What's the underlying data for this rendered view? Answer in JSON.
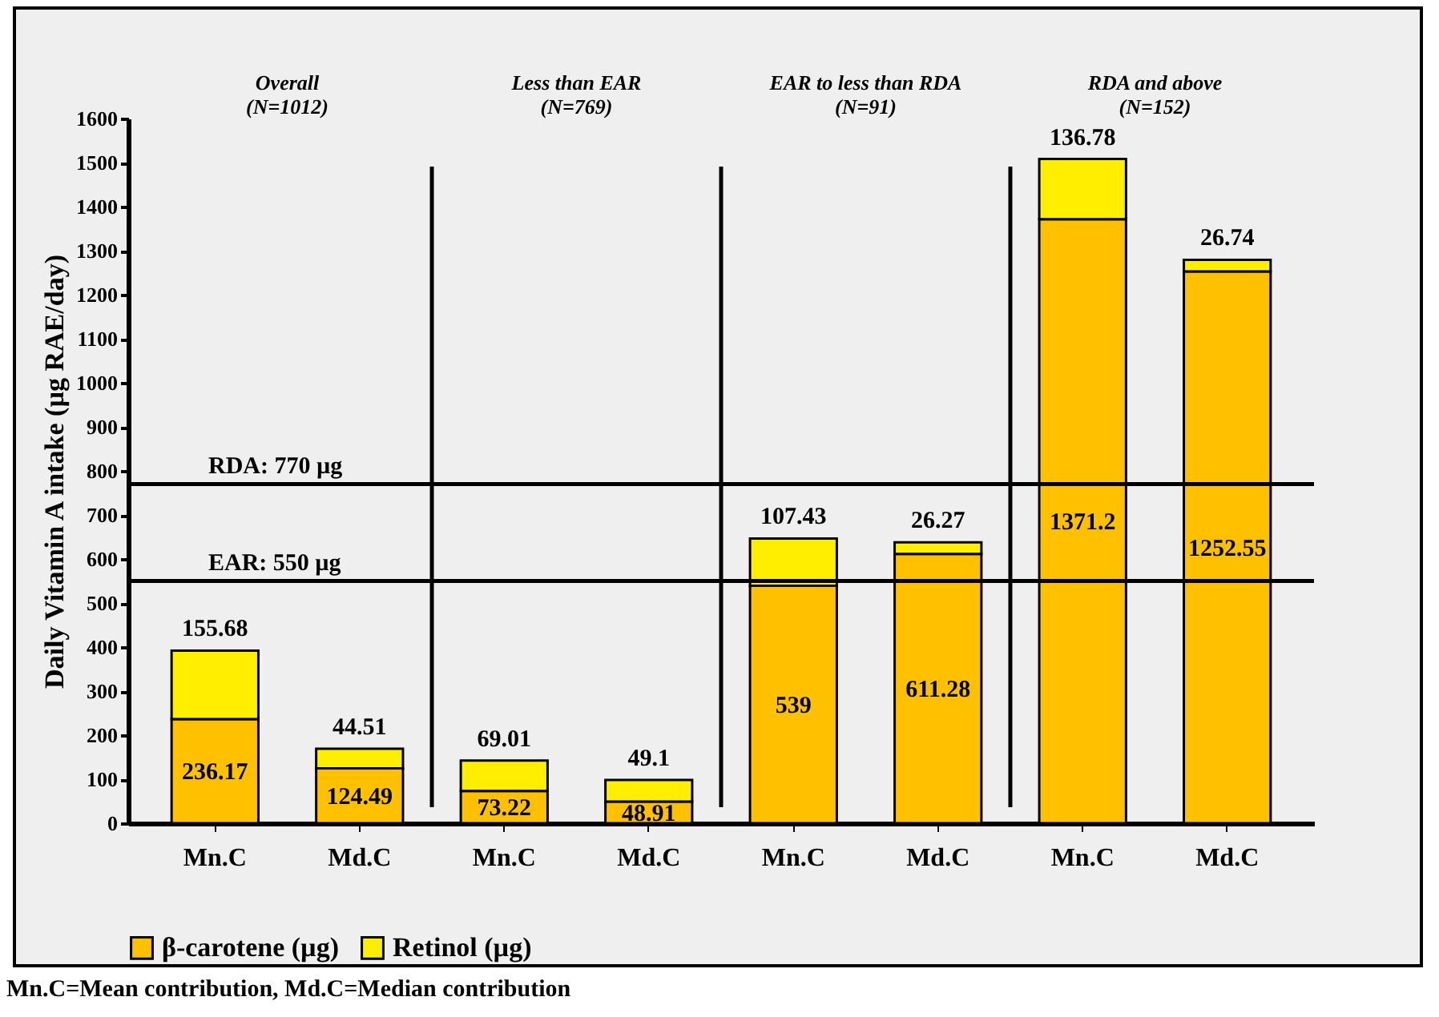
{
  "chart_data": {
    "type": "bar",
    "stacked": true,
    "ylabel": "Daily Vitamin A intake (µg RAE/day)",
    "categories": [
      "Mn.C",
      "Md.C",
      "Mn.C",
      "Md.C",
      "Mn.C",
      "Md.C",
      "Mn.C",
      "Md.C"
    ],
    "series": [
      {
        "name": "β-carotene (µg)",
        "color": "#ffc000",
        "values": [
          236.17,
          124.49,
          73.22,
          48.91,
          539,
          611.28,
          1371.2,
          1252.55
        ]
      },
      {
        "name": "Retinol (µg)",
        "color": "#ffee00",
        "values": [
          155.68,
          44.51,
          69.01,
          49.1,
          107.43,
          26.27,
          136.78,
          26.74
        ]
      }
    ],
    "ylim": [
      0,
      1600
    ],
    "yticks": [
      0,
      100,
      200,
      300,
      400,
      500,
      600,
      700,
      800,
      900,
      1000,
      1100,
      1200,
      1300,
      1400,
      1500,
      1600
    ],
    "ref_lines": [
      {
        "axis": "y",
        "value": 770,
        "label": "RDA:  770 µg"
      },
      {
        "axis": "y",
        "value": 550,
        "label": "EAR: 550 µg"
      }
    ],
    "data_labels": true,
    "grid": false,
    "legend": "bottom",
    "annotations": [
      "Overall (N=1012)",
      "Less than EAR (N=769)",
      "EAR to less than RDA (N=91)",
      "RDA and above (N=152)",
      "Mn.C=Mean contribution, Md.C=Median contribution"
    ]
  }
}
